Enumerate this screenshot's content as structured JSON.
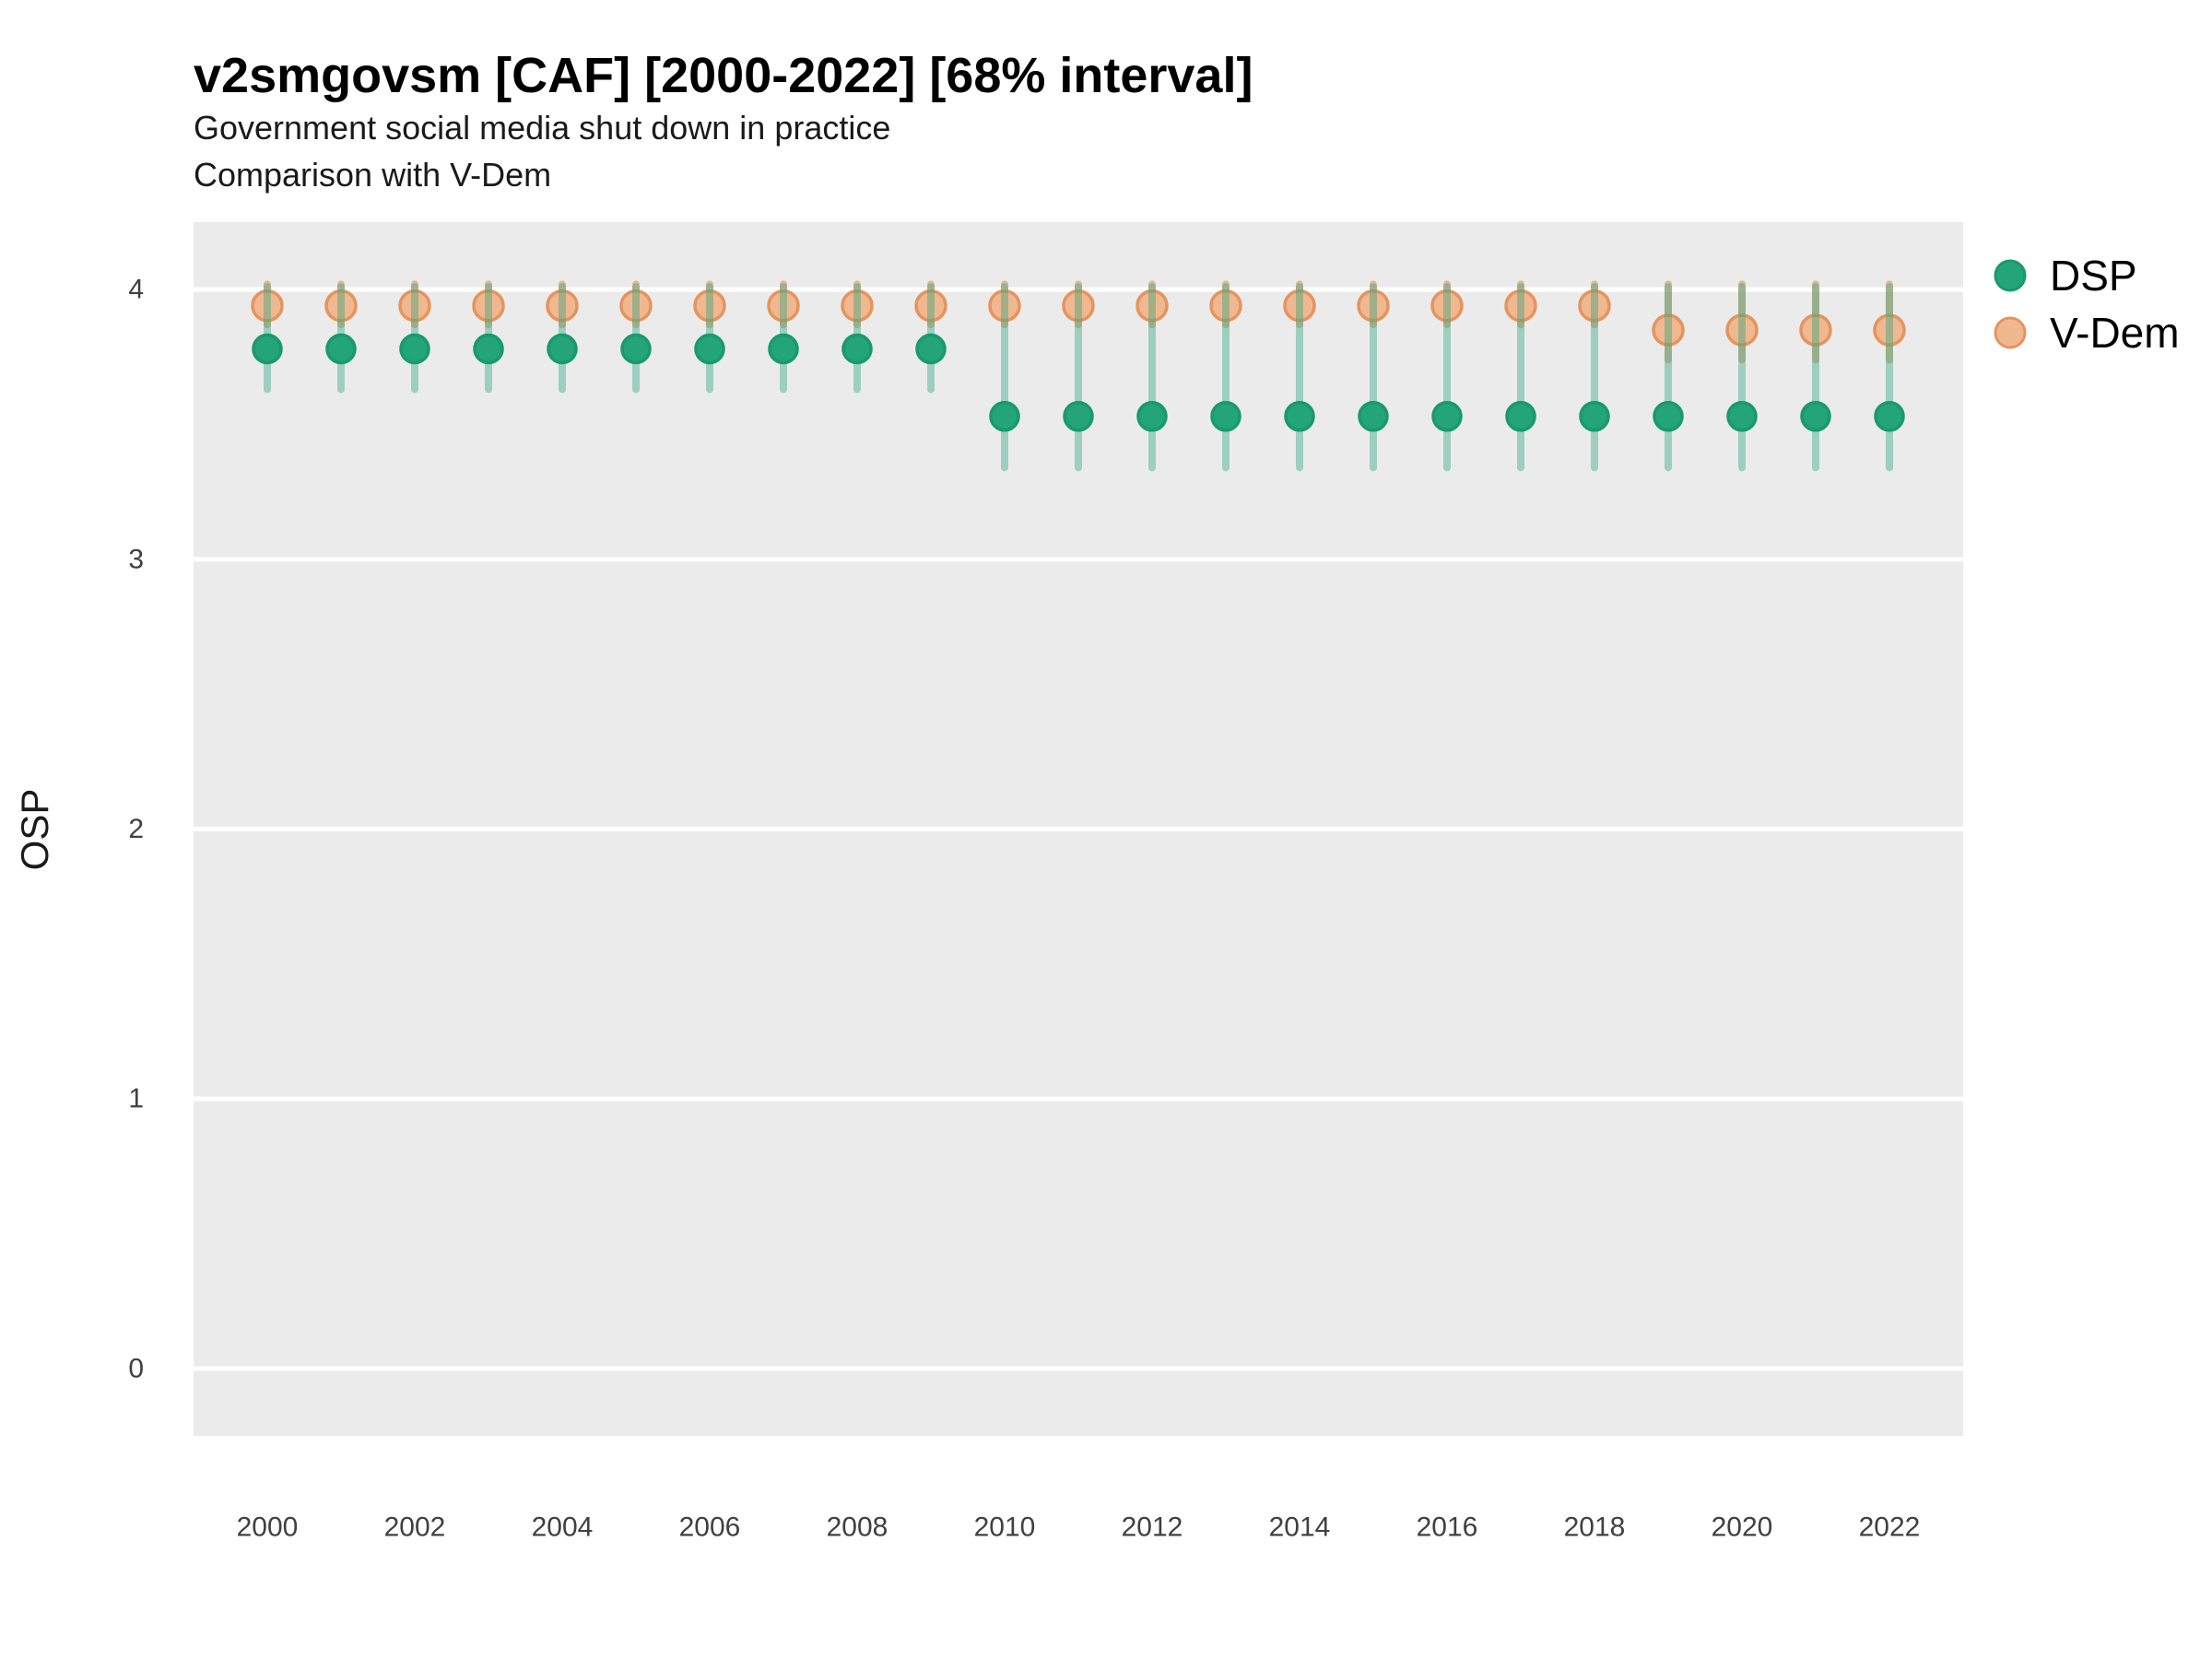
{
  "header": {
    "title": "v2smgovsm [CAF] [2000-2022] [68% interval]",
    "subtitle": "Government social media shut down in practice",
    "subtitle2": "Comparison with V-Dem"
  },
  "legend": {
    "entries": [
      {
        "label": "DSP",
        "marker_fill": "#23a479",
        "marker_stroke": "#189a6c"
      },
      {
        "label": "V-Dem",
        "marker_fill": "#f0b890",
        "marker_stroke": "#e5945e"
      }
    ]
  },
  "chart_data": {
    "type": "scatter",
    "title": "v2smgovsm [CAF] [2000-2022] [68% interval]",
    "subtitle": "Government social media shut down in practice",
    "subtitle2": "Comparison with V-Dem",
    "xlabel": "",
    "ylabel": "OSP",
    "interval_note": "68% interval",
    "x": [
      2000,
      2001,
      2002,
      2003,
      2004,
      2005,
      2006,
      2007,
      2008,
      2009,
      2010,
      2011,
      2012,
      2013,
      2014,
      2015,
      2016,
      2017,
      2018,
      2019,
      2020,
      2021,
      2022
    ],
    "x_ticks": [
      2000,
      2002,
      2004,
      2006,
      2008,
      2010,
      2012,
      2014,
      2016,
      2018,
      2020,
      2022
    ],
    "x_tick_labels": [
      "2000",
      "2002",
      "2004",
      "2006",
      "2008",
      "2010",
      "2012",
      "2014",
      "2016",
      "2018",
      "2020",
      "2022"
    ],
    "y_ticks": [
      0,
      1,
      2,
      3,
      4
    ],
    "y_tick_labels": [
      "0",
      "1",
      "2",
      "3",
      "4"
    ],
    "xlim": [
      1999.0,
      2023.0
    ],
    "ylim": [
      -0.25,
      4.25
    ],
    "grid": "horizontal-only",
    "legend_position": "right",
    "series": [
      {
        "name": "DSP",
        "color": "#23a479",
        "stroke": "#189a6c",
        "interval_color": "rgba(38,165,125,0.40)",
        "marker_radius": 15,
        "values": [
          3.78,
          3.78,
          3.78,
          3.78,
          3.78,
          3.78,
          3.78,
          3.78,
          3.78,
          3.78,
          3.53,
          3.53,
          3.53,
          3.53,
          3.53,
          3.53,
          3.53,
          3.53,
          3.53,
          3.53,
          3.53,
          3.53,
          3.53
        ],
        "lo": [
          3.63,
          3.63,
          3.63,
          3.63,
          3.63,
          3.63,
          3.63,
          3.63,
          3.63,
          3.63,
          3.34,
          3.34,
          3.34,
          3.34,
          3.34,
          3.34,
          3.34,
          3.34,
          3.34,
          3.34,
          3.34,
          3.34,
          3.34
        ],
        "hi": [
          4.01,
          4.01,
          4.01,
          4.01,
          4.01,
          4.01,
          4.01,
          4.01,
          4.01,
          4.01,
          4.01,
          4.01,
          4.01,
          4.01,
          4.01,
          4.01,
          4.01,
          4.01,
          4.01,
          4.01,
          4.01,
          4.01,
          4.01
        ]
      },
      {
        "name": "V-Dem",
        "color": "#f0b890",
        "stroke": "#e5945e",
        "interval_color": "rgba(223,130,63,0.50)",
        "marker_radius": 16,
        "values": [
          3.94,
          3.94,
          3.94,
          3.94,
          3.94,
          3.94,
          3.94,
          3.94,
          3.94,
          3.94,
          3.94,
          3.94,
          3.94,
          3.94,
          3.94,
          3.94,
          3.94,
          3.94,
          3.94,
          3.85,
          3.85,
          3.85,
          3.85
        ],
        "lo": [
          3.87,
          3.87,
          3.87,
          3.87,
          3.87,
          3.87,
          3.87,
          3.87,
          3.87,
          3.87,
          3.87,
          3.87,
          3.87,
          3.87,
          3.87,
          3.87,
          3.87,
          3.87,
          3.87,
          3.74,
          3.74,
          3.74,
          3.74
        ],
        "hi": [
          4.02,
          4.02,
          4.02,
          4.02,
          4.02,
          4.02,
          4.02,
          4.02,
          4.02,
          4.02,
          4.02,
          4.02,
          4.02,
          4.02,
          4.02,
          4.02,
          4.02,
          4.02,
          4.02,
          4.02,
          4.02,
          4.02,
          4.02
        ]
      }
    ],
    "theme": {
      "panel_bg": "#ebebeb",
      "grid_color": "#ffffff",
      "figure_bg": "#ffffff",
      "tick_label_color": "#404040",
      "text_color": "#000000"
    }
  }
}
